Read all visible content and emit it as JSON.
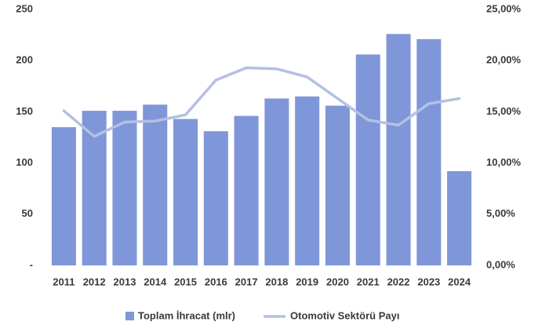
{
  "chart_data": {
    "type": "bar",
    "categories": [
      "2011",
      "2012",
      "2013",
      "2014",
      "2015",
      "2016",
      "2017",
      "2018",
      "2019",
      "2020",
      "2021",
      "2022",
      "2023",
      "2024"
    ],
    "series": [
      {
        "name": "Toplam İhracat (mlr)",
        "type": "bar",
        "color": "#7f96d8",
        "values": [
          135,
          151,
          151,
          157,
          143,
          131,
          146,
          163,
          165,
          156,
          206,
          226,
          221,
          92
        ]
      },
      {
        "name": "Otomotiv Sektörü Payı",
        "type": "line",
        "axis": "y2",
        "color": "#b4c0e4",
        "values": [
          15.1,
          12.6,
          14.0,
          14.1,
          14.7,
          18.1,
          19.3,
          19.2,
          18.4,
          16.3,
          14.2,
          13.7,
          15.8,
          16.3
        ]
      }
    ],
    "ylim": [
      0,
      250
    ],
    "yticks": [
      {
        "value": 0,
        "label": "-"
      },
      50,
      100,
      150,
      200,
      250
    ],
    "y2lim": [
      0,
      25
    ],
    "y2ticks": [
      {
        "value": 0,
        "label": "0,00%"
      },
      {
        "value": 5,
        "label": "5,00%"
      },
      {
        "value": 10,
        "label": "10,00%"
      },
      {
        "value": 15,
        "label": "15,00%"
      },
      {
        "value": 20,
        "label": "20,00%"
      },
      {
        "value": 25,
        "label": "25,00%"
      }
    ],
    "grid": false,
    "legend": "bottom"
  }
}
